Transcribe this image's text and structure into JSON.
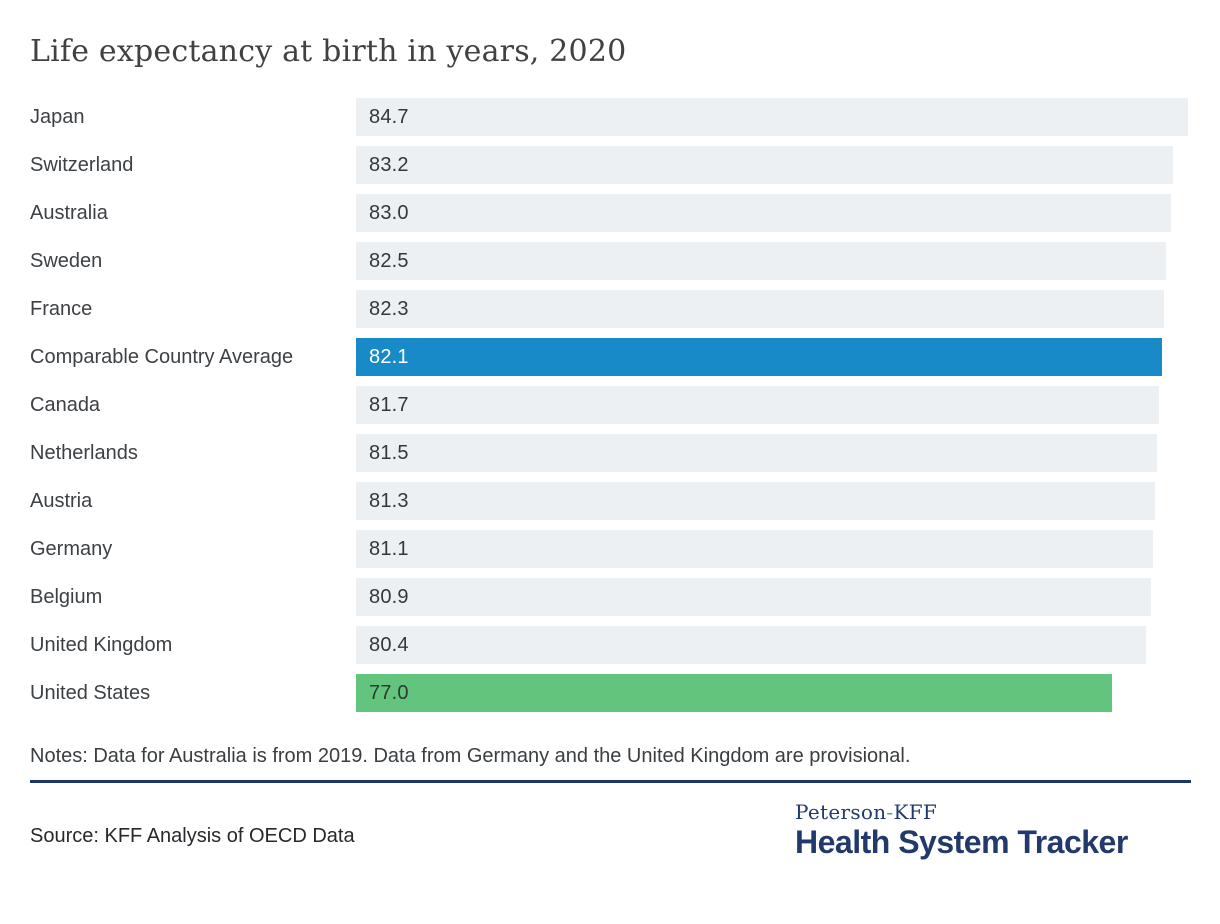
{
  "title": "Life expectancy at birth in years, 2020",
  "chart_data": {
    "type": "bar",
    "orientation": "horizontal",
    "title": "Life expectancy at birth in years, 2020",
    "categories": [
      "Japan",
      "Switzerland",
      "Australia",
      "Sweden",
      "France",
      "Comparable Country Average",
      "Canada",
      "Netherlands",
      "Austria",
      "Germany",
      "Belgium",
      "United Kingdom",
      "United States"
    ],
    "values": [
      84.7,
      83.2,
      83.0,
      82.5,
      82.3,
      82.1,
      81.7,
      81.5,
      81.3,
      81.1,
      80.9,
      80.4,
      77.0
    ],
    "value_labels": [
      "84.7",
      "83.2",
      "83.0",
      "82.5",
      "82.3",
      "82.1",
      "81.7",
      "81.5",
      "81.3",
      "81.1",
      "80.9",
      "80.4",
      "77.0"
    ],
    "bar_styles": [
      "default",
      "default",
      "default",
      "default",
      "default",
      "average",
      "default",
      "default",
      "default",
      "default",
      "default",
      "default",
      "us"
    ],
    "xlim": [
      0,
      84.7
    ],
    "grid": false,
    "legend": false,
    "bar_colors": {
      "default": "#ECF0F3",
      "average": "#198AC8",
      "us": "#62C47D"
    },
    "value_text_colors": {
      "default": "#33383c",
      "average": "#ffffff",
      "us": "#2d3a31"
    }
  },
  "notes": "Notes: Data for Australia is from 2019. Data from Germany and the United Kingdom are provisional.",
  "source": "Source: KFF Analysis of OECD Data",
  "logo": {
    "peterson": "Peterson",
    "hyphen": "-",
    "kff": "KFF",
    "tracker": "Health System Tracker"
  },
  "theme": {
    "divider_navy": "#1B3668",
    "logo_navy": "#21396B",
    "logo_hyphen_green": "#4FA95F",
    "title_color": "#414143"
  }
}
